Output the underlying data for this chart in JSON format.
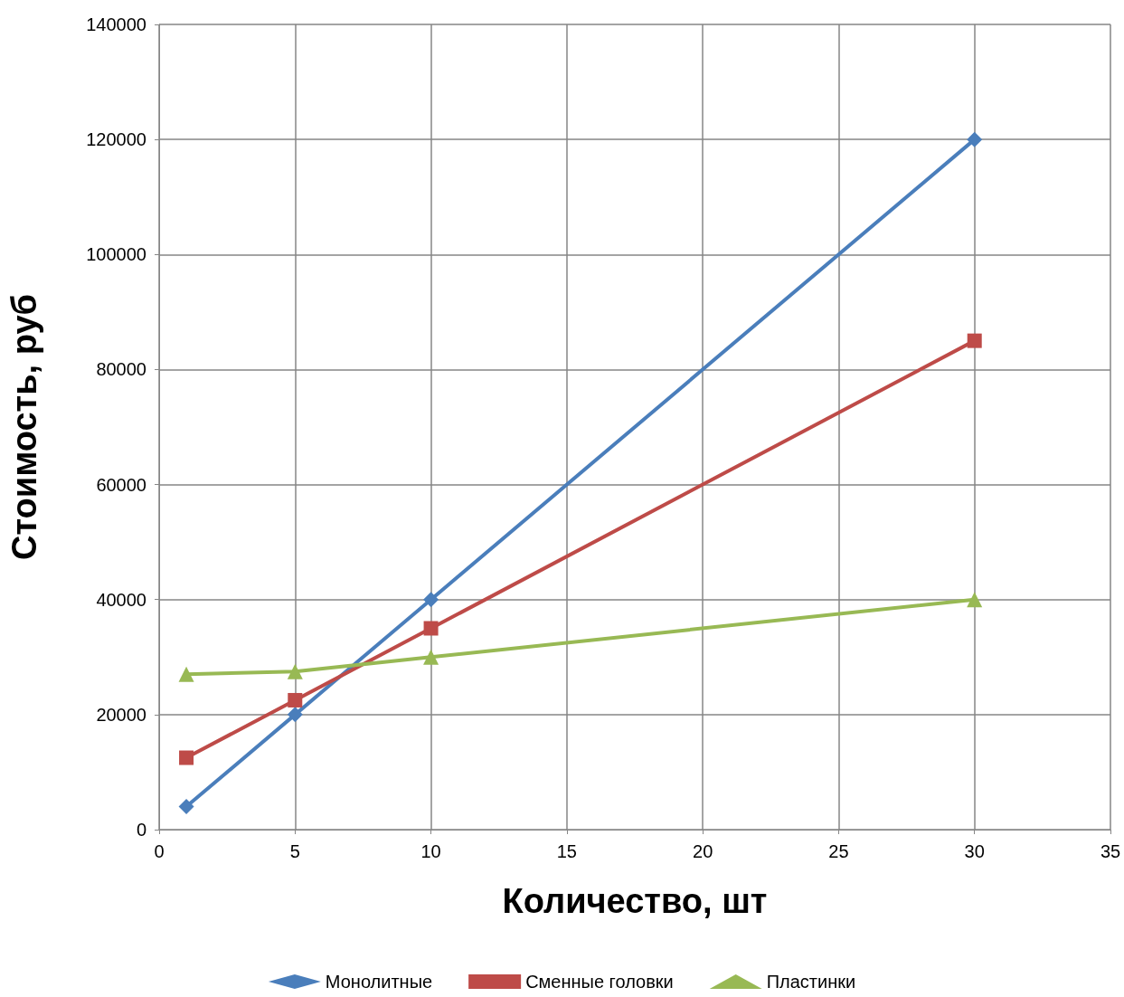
{
  "chart_data": {
    "type": "line",
    "xlabel": "Количество, шт",
    "ylabel": "Стоимость, руб",
    "x": [
      1,
      5,
      10,
      30
    ],
    "series": [
      {
        "name": "Монолитные",
        "color": "#4a7ebb",
        "marker": "diamond",
        "values": [
          4000,
          20000,
          40000,
          120000
        ]
      },
      {
        "name": "Сменные головки",
        "color": "#be4b48",
        "marker": "square",
        "values": [
          12500,
          22500,
          35000,
          85000
        ]
      },
      {
        "name": "Пластинки",
        "color": "#98b954",
        "marker": "triangle",
        "values": [
          27000,
          27500,
          30000,
          40000
        ]
      }
    ],
    "xlim": [
      0,
      35
    ],
    "xticks": [
      0,
      5,
      10,
      15,
      20,
      25,
      30,
      35
    ],
    "ylim": [
      0,
      140000
    ],
    "yticks": [
      0,
      20000,
      40000,
      60000,
      80000,
      100000,
      120000,
      140000
    ],
    "grid": true,
    "legend": "bottom",
    "line_style": "solid"
  }
}
